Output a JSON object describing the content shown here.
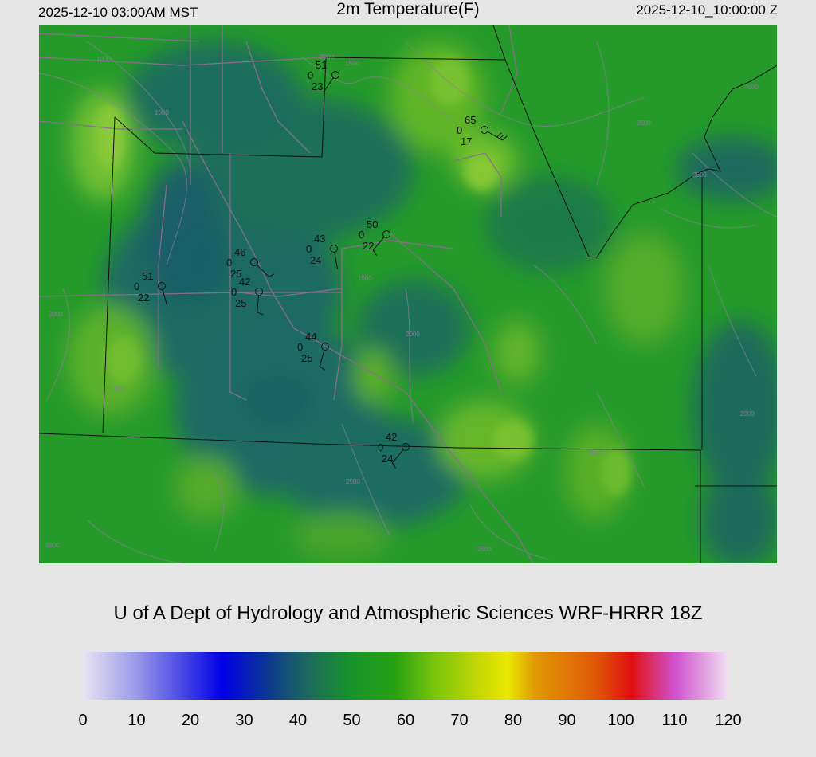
{
  "header": {
    "local_time": "2025-12-10 03:00AM MST",
    "title": "2m Temperature(F)",
    "utc_time": "2025-12-10_10:00:00 Z"
  },
  "credit": "U of A Dept of Hydrology and Atmospheric Sciences WRF-HRRR 18Z",
  "colorbar": {
    "ticks": [
      "0",
      "10",
      "20",
      "30",
      "40",
      "50",
      "60",
      "70",
      "80",
      "90",
      "100",
      "110",
      "120"
    ],
    "range": [
      0,
      120
    ],
    "stops": [
      {
        "v": 0,
        "c": "#e8e4f2"
      },
      {
        "v": 10,
        "c": "#9a98e8"
      },
      {
        "v": 20,
        "c": "#3a3ae6"
      },
      {
        "v": 26,
        "c": "#0000e6"
      },
      {
        "v": 35,
        "c": "#0e3d8a"
      },
      {
        "v": 42,
        "c": "#1e6a5c"
      },
      {
        "v": 50,
        "c": "#17952a"
      },
      {
        "v": 58,
        "c": "#27a012"
      },
      {
        "v": 65,
        "c": "#74c40c"
      },
      {
        "v": 74,
        "c": "#c9d804"
      },
      {
        "v": 79,
        "c": "#e8e800"
      },
      {
        "v": 84,
        "c": "#e09a06"
      },
      {
        "v": 95,
        "c": "#e05a06"
      },
      {
        "v": 102,
        "c": "#e01010"
      },
      {
        "v": 110,
        "c": "#d050d0"
      },
      {
        "v": 120,
        "c": "#f0e0f0"
      }
    ]
  },
  "map": {
    "contour_labels": [
      "3000",
      "1000",
      "1000",
      "1500",
      "2500",
      "2500",
      "4000",
      "2000",
      "2000",
      "1500",
      "2500",
      "2000",
      "2000",
      "2500",
      "2500",
      "1500"
    ],
    "stations": [
      {
        "temp": "51",
        "mid": "0",
        "dew": "23"
      },
      {
        "temp": "65",
        "mid": "0",
        "dew": "17"
      },
      {
        "temp": "50",
        "mid": "0",
        "dew": "22"
      },
      {
        "temp": "43",
        "mid": "0",
        "dew": "24"
      },
      {
        "temp": "46",
        "mid": "0",
        "dew": "25"
      },
      {
        "temp": "51",
        "mid": "0",
        "dew": "22"
      },
      {
        "temp": "42",
        "mid": "0",
        "dew": "25"
      },
      {
        "temp": "44",
        "mid": "0",
        "dew": "25"
      },
      {
        "temp": "42",
        "mid": "0",
        "dew": "24"
      }
    ]
  }
}
